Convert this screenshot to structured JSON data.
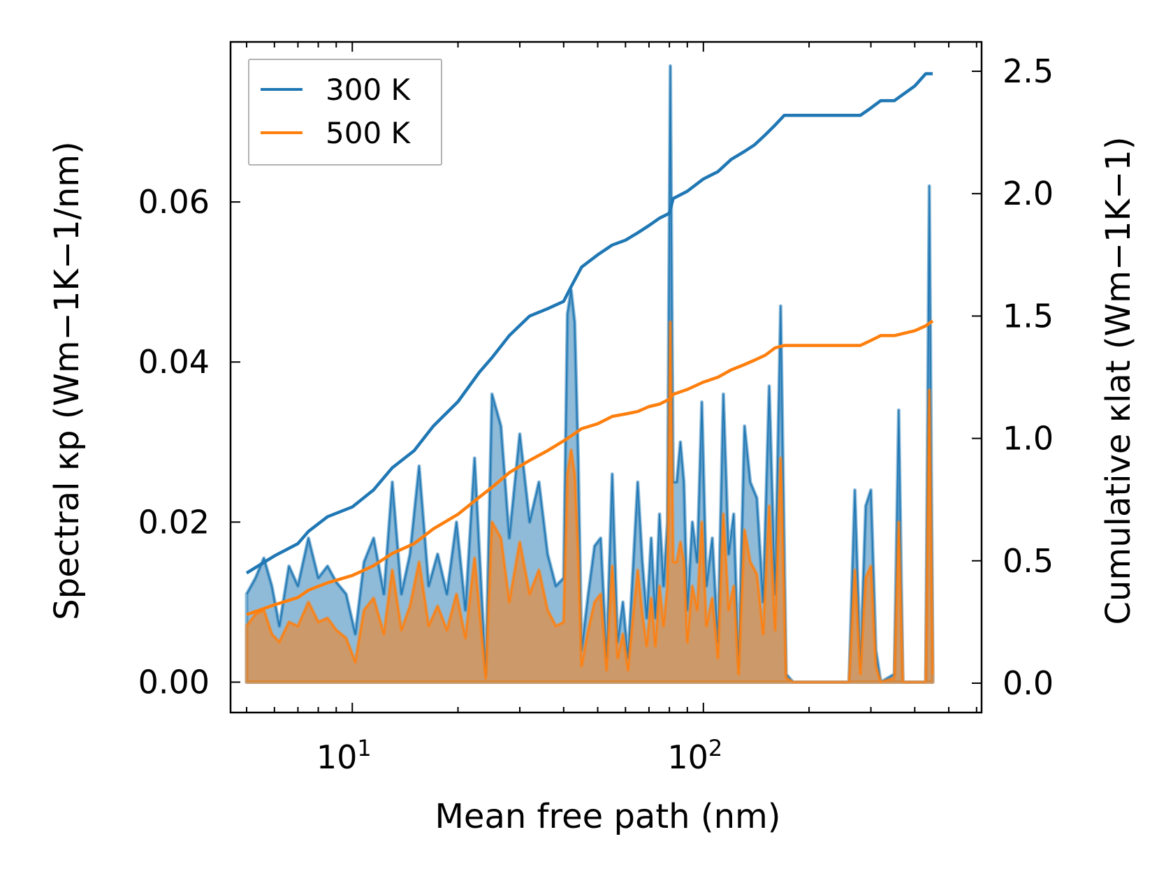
{
  "chart_data": {
    "type": "line",
    "xscale": "log",
    "xlabel": "Mean free path (nm)",
    "ylabel_left": "Spectral κp (Wm−1K−1/nm)",
    "ylabel_right": "Cumulative κlat (Wm−1K−1)",
    "xlim": [
      4.5,
      620
    ],
    "ylim_left": [
      -0.0038,
      0.08
    ],
    "ylim_right": [
      -0.12,
      2.62
    ],
    "x_ticks": [
      {
        "value": 10,
        "base": "10",
        "exp": "1"
      },
      {
        "value": 100,
        "base": "10",
        "exp": "2"
      }
    ],
    "y_left_ticks": [
      {
        "value": 0.0,
        "label": "0.00"
      },
      {
        "value": 0.02,
        "label": "0.02"
      },
      {
        "value": 0.04,
        "label": "0.04"
      },
      {
        "value": 0.06,
        "label": "0.06"
      }
    ],
    "y_right_ticks": [
      {
        "value": 0.0,
        "label": "0.0"
      },
      {
        "value": 0.5,
        "label": "0.5"
      },
      {
        "value": 1.0,
        "label": "1.0"
      },
      {
        "value": 1.5,
        "label": "1.5"
      },
      {
        "value": 2.0,
        "label": "2.0"
      },
      {
        "value": 2.5,
        "label": "2.5"
      }
    ],
    "legend": {
      "position": "top-left",
      "entries": [
        {
          "name": "300 K",
          "color": "#1f77b4"
        },
        {
          "name": "500 K",
          "color": "#ff7f0e"
        }
      ]
    },
    "series": [
      {
        "name": "300 K",
        "color": "#1f77b4",
        "spectral": {
          "x": [
            5.0,
            5.3,
            5.6,
            5.9,
            6.2,
            6.6,
            7.0,
            7.5,
            8.0,
            8.5,
            9.0,
            9.6,
            10.2,
            10.8,
            11.5,
            12.3,
            13.0,
            13.8,
            14.6,
            15.5,
            16.5,
            17.5,
            18.6,
            19.8,
            21.0,
            22.3,
            23.7,
            24.0,
            25.0,
            26.5,
            28.0,
            30.0,
            32.0,
            34.0,
            36.0,
            38.0,
            40.0,
            41.0,
            42.0,
            43.0,
            44.0,
            45.0,
            47.0,
            49.0,
            51.0,
            53.0,
            55.0,
            57.0,
            59.0,
            61.0,
            63.0,
            65.0,
            67.0,
            69.0,
            71.0,
            73.0,
            75.0,
            77.0,
            79.0,
            80.5,
            82.0,
            84.0,
            86.0,
            88.0,
            90.0,
            93.0,
            96.0,
            99.0,
            102.0,
            106.0,
            110.0,
            114.0,
            118.0,
            122.0,
            126.0,
            131.0,
            136.0,
            142.0,
            148.0,
            154.0,
            160.0,
            166.0,
            172.0,
            180.0,
            220.0,
            260.0,
            270.0,
            280.0,
            290.0,
            300.0,
            310.0,
            320.0,
            350.0,
            360.0,
            370.0,
            400.0,
            430.0,
            440.0,
            450.0
          ],
          "values": [
            0.011,
            0.013,
            0.0155,
            0.012,
            0.007,
            0.0145,
            0.012,
            0.018,
            0.013,
            0.0145,
            0.0125,
            0.011,
            0.006,
            0.015,
            0.018,
            0.011,
            0.025,
            0.011,
            0.016,
            0.027,
            0.012,
            0.016,
            0.011,
            0.02,
            0.009,
            0.028,
            0.0055,
            0.001,
            0.036,
            0.032,
            0.018,
            0.031,
            0.02,
            0.025,
            0.016,
            0.012,
            0.013,
            0.046,
            0.049,
            0.045,
            0.028,
            0.004,
            0.011,
            0.017,
            0.018,
            0.003,
            0.026,
            0.005,
            0.01,
            0.003,
            0.014,
            0.025,
            0.015,
            0.008,
            0.018,
            0.008,
            0.021,
            0.012,
            0.02,
            0.077,
            0.025,
            0.025,
            0.03,
            0.025,
            0.009,
            0.02,
            0.015,
            0.035,
            0.012,
            0.018,
            0.005,
            0.036,
            0.016,
            0.021,
            0.002,
            0.032,
            0.025,
            0.023,
            0.01,
            0.037,
            0.011,
            0.047,
            0.001,
            0.0,
            0.0,
            0.0,
            0.024,
            0.002,
            0.022,
            0.024,
            0.004,
            0.0,
            0.001,
            0.034,
            0.0,
            0.0,
            0.0,
            0.062,
            0.002
          ]
        },
        "cumulative": {
          "x": [
            5.0,
            6.0,
            7.0,
            7.5,
            8.5,
            10.0,
            11.5,
            13.0,
            15.0,
            17.0,
            20.0,
            23.0,
            25.0,
            28.0,
            32.0,
            36.0,
            40.0,
            42.0,
            45.0,
            50.0,
            55.0,
            60.0,
            65.0,
            70.0,
            75.0,
            80.0,
            82.0,
            90.0,
            100.0,
            110.0,
            120.0,
            130.0,
            140.0,
            150.0,
            160.0,
            170.0,
            200.0,
            280.0,
            300.0,
            320.0,
            350.0,
            400.0,
            430.0,
            450.0
          ],
          "values": [
            0.45,
            0.52,
            0.57,
            0.62,
            0.68,
            0.72,
            0.79,
            0.88,
            0.95,
            1.05,
            1.15,
            1.27,
            1.33,
            1.42,
            1.5,
            1.53,
            1.56,
            1.62,
            1.7,
            1.75,
            1.79,
            1.81,
            1.84,
            1.87,
            1.9,
            1.92,
            1.98,
            2.01,
            2.06,
            2.09,
            2.14,
            2.17,
            2.2,
            2.24,
            2.28,
            2.32,
            2.32,
            2.32,
            2.35,
            2.38,
            2.38,
            2.44,
            2.49,
            2.49
          ]
        }
      },
      {
        "name": "500 K",
        "color": "#ff7f0e",
        "spectral": {
          "x": [
            5.0,
            5.3,
            5.6,
            5.9,
            6.2,
            6.6,
            7.0,
            7.5,
            8.0,
            8.5,
            9.0,
            9.6,
            10.2,
            10.8,
            11.5,
            12.3,
            13.0,
            13.8,
            14.6,
            15.5,
            16.5,
            17.5,
            18.6,
            19.8,
            21.0,
            22.3,
            23.7,
            24.0,
            25.0,
            26.5,
            28.0,
            30.0,
            32.0,
            34.0,
            36.0,
            38.0,
            40.0,
            41.0,
            42.0,
            43.0,
            44.0,
            45.0,
            47.0,
            49.0,
            51.0,
            53.0,
            55.0,
            57.0,
            59.0,
            61.0,
            63.0,
            65.0,
            67.0,
            69.0,
            71.0,
            73.0,
            75.0,
            77.0,
            79.0,
            80.5,
            82.0,
            84.0,
            86.0,
            88.0,
            90.0,
            93.0,
            96.0,
            99.0,
            102.0,
            106.0,
            110.0,
            114.0,
            118.0,
            122.0,
            126.0,
            131.0,
            136.0,
            142.0,
            148.0,
            154.0,
            160.0,
            166.0,
            172.0,
            180.0,
            220.0,
            260.0,
            270.0,
            280.0,
            290.0,
            300.0,
            310.0,
            320.0,
            350.0,
            360.0,
            370.0,
            400.0,
            430.0,
            440.0,
            450.0
          ],
          "values": [
            0.007,
            0.0085,
            0.009,
            0.006,
            0.005,
            0.0075,
            0.007,
            0.01,
            0.0075,
            0.008,
            0.0065,
            0.0055,
            0.0025,
            0.009,
            0.0105,
            0.006,
            0.014,
            0.0065,
            0.0095,
            0.015,
            0.007,
            0.0095,
            0.0065,
            0.011,
            0.0055,
            0.0155,
            0.003,
            0.0005,
            0.02,
            0.018,
            0.01,
            0.0175,
            0.011,
            0.014,
            0.009,
            0.007,
            0.0075,
            0.026,
            0.029,
            0.026,
            0.016,
            0.002,
            0.0065,
            0.01,
            0.011,
            0.0015,
            0.0145,
            0.003,
            0.006,
            0.0015,
            0.008,
            0.014,
            0.0085,
            0.0045,
            0.0105,
            0.0045,
            0.012,
            0.007,
            0.012,
            0.045,
            0.015,
            0.015,
            0.0175,
            0.015,
            0.005,
            0.012,
            0.009,
            0.02,
            0.007,
            0.0105,
            0.003,
            0.021,
            0.009,
            0.012,
            0.001,
            0.019,
            0.015,
            0.0135,
            0.006,
            0.022,
            0.0065,
            0.028,
            0.0005,
            0.0,
            0.0,
            0.0,
            0.014,
            0.001,
            0.013,
            0.0145,
            0.002,
            0.0,
            0.0005,
            0.02,
            0.0,
            0.0,
            0.0,
            0.0365,
            0.001
          ]
        },
        "cumulative": {
          "x": [
            5.0,
            6.0,
            7.0,
            7.5,
            8.5,
            10.0,
            11.5,
            13.0,
            15.0,
            17.0,
            20.0,
            23.0,
            25.0,
            28.0,
            32.0,
            36.0,
            40.0,
            42.0,
            45.0,
            50.0,
            55.0,
            60.0,
            65.0,
            70.0,
            75.0,
            80.0,
            82.0,
            90.0,
            100.0,
            110.0,
            120.0,
            130.0,
            140.0,
            150.0,
            160.0,
            170.0,
            200.0,
            280.0,
            300.0,
            320.0,
            350.0,
            400.0,
            430.0,
            450.0
          ],
          "values": [
            0.28,
            0.32,
            0.35,
            0.38,
            0.41,
            0.44,
            0.48,
            0.53,
            0.57,
            0.63,
            0.69,
            0.76,
            0.8,
            0.86,
            0.91,
            0.95,
            0.99,
            1.01,
            1.04,
            1.06,
            1.09,
            1.1,
            1.11,
            1.13,
            1.14,
            1.16,
            1.18,
            1.2,
            1.23,
            1.25,
            1.28,
            1.3,
            1.32,
            1.34,
            1.37,
            1.38,
            1.38,
            1.38,
            1.4,
            1.42,
            1.42,
            1.44,
            1.46,
            1.48
          ]
        }
      }
    ]
  }
}
